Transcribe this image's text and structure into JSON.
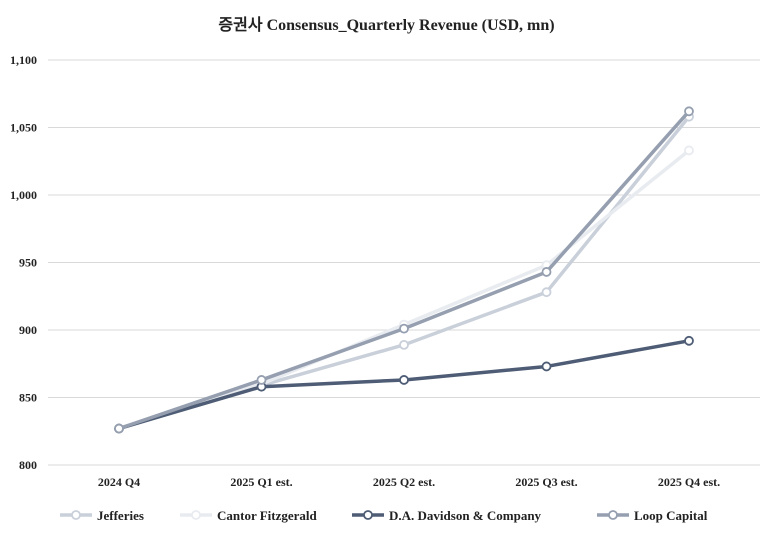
{
  "chart_data": {
    "type": "line",
    "title": "증권사 Consensus_Quarterly Revenue (USD, mn)",
    "categories": [
      "2024 Q4",
      "2025 Q1 est.",
      "2025 Q2 est.",
      "2025 Q3 est.",
      "2025 Q4 est."
    ],
    "ylim": [
      800,
      1100
    ],
    "yticks": [
      "800",
      "850",
      "900",
      "950",
      "1,000",
      "1,050",
      "1,100"
    ],
    "ytick_values": [
      800,
      850,
      900,
      950,
      1000,
      1050,
      1100
    ],
    "grid": true,
    "legend_position": "bottom",
    "series": [
      {
        "name": "Jefferies",
        "color": "#c9d0da",
        "values": [
          827,
          859,
          889,
          928,
          1058
        ]
      },
      {
        "name": "Cantor Fitzgerald",
        "color": "#e8ebef",
        "values": [
          827,
          860,
          904,
          948,
          1033
        ]
      },
      {
        "name": "D.A. Davidson & Company",
        "color": "#4e5d75",
        "values": [
          827,
          858,
          863,
          873,
          892
        ]
      },
      {
        "name": "Loop Capital",
        "color": "#959fb0",
        "values": [
          827,
          863,
          901,
          943,
          1062
        ]
      }
    ]
  }
}
